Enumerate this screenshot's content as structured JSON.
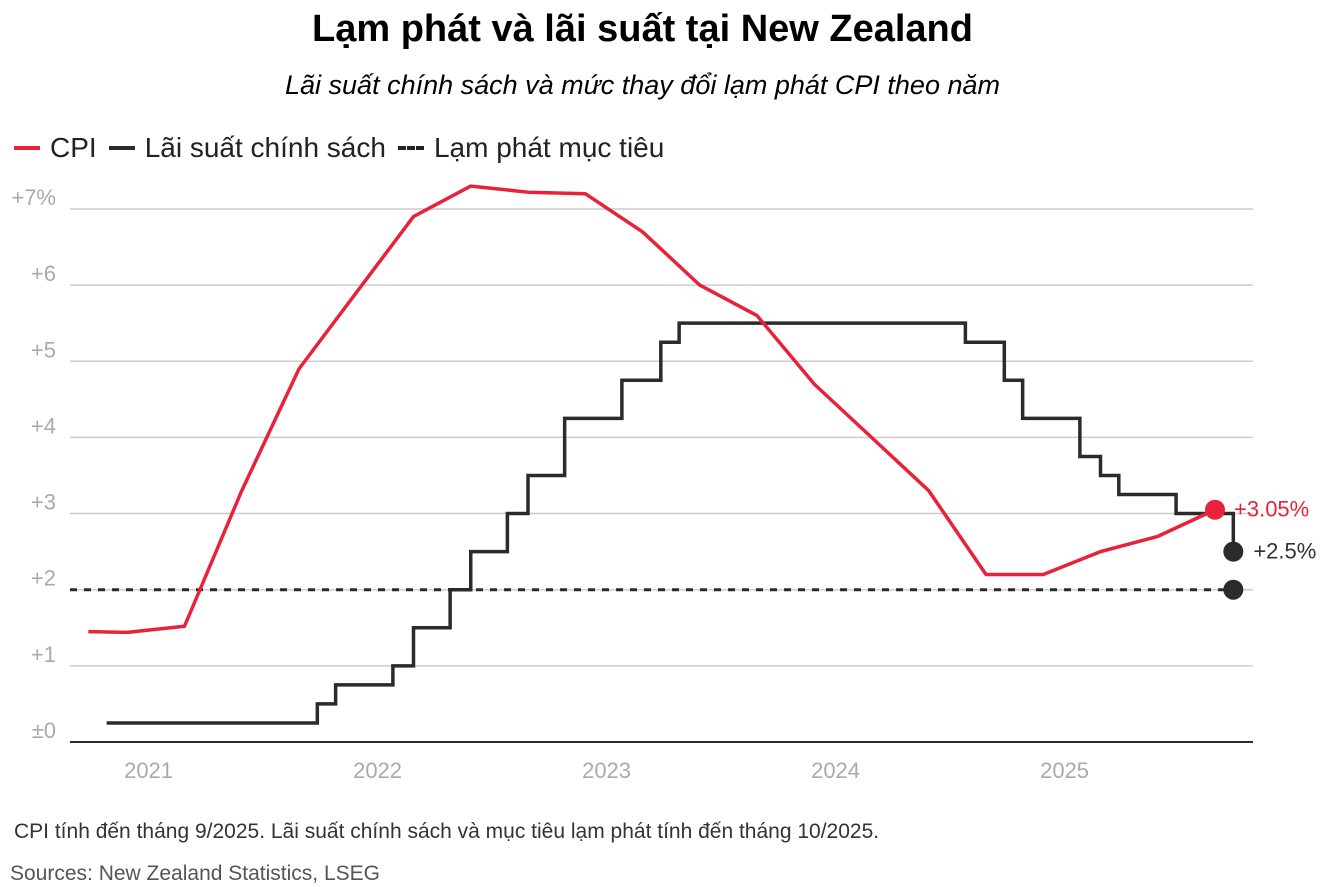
{
  "chart_data": {
    "type": "line",
    "title": "Lạm phát và lãi suất tại New Zealand",
    "subtitle": "Lãi suất chính sách và mức thay đổi lạm phát CPI theo năm",
    "y_tick_labels": [
      "±0",
      "+1",
      "+2",
      "+3",
      "+4",
      "+5",
      "+6",
      "+7%"
    ],
    "y_ticks": [
      0,
      1,
      2,
      3,
      4,
      5,
      6,
      7
    ],
    "ylim": [
      0,
      7.5
    ],
    "x_tick_labels": [
      "2021",
      "2022",
      "2023",
      "2024",
      "2025"
    ],
    "x_ticks": [
      2021.0,
      2022.0,
      2023.0,
      2024.0,
      2025.0
    ],
    "xlim": [
      2020.67,
      2025.92
    ],
    "grid": true,
    "legend_position": "top-left",
    "series": [
      {
        "name": "CPI",
        "color": "#e8223b",
        "style": "line",
        "x": [
          2020.75,
          2020.92,
          2021.17,
          2021.42,
          2021.67,
          2021.92,
          2022.17,
          2022.42,
          2022.67,
          2022.92,
          2023.17,
          2023.42,
          2023.67,
          2023.92,
          2024.17,
          2024.42,
          2024.67,
          2024.92,
          2025.17,
          2025.42,
          2025.67
        ],
        "y": [
          1.45,
          1.44,
          1.52,
          3.3,
          4.9,
          5.9,
          6.9,
          7.3,
          7.22,
          7.2,
          6.7,
          6.0,
          5.6,
          4.7,
          4.0,
          3.3,
          2.2,
          2.2,
          2.5,
          2.7,
          3.05
        ],
        "end_label": "+3.05%"
      },
      {
        "name": "Lãi suất chính sách",
        "color": "#2b2b2b",
        "style": "step",
        "x": [
          2020.83,
          2021.75,
          2021.83,
          2022.08,
          2022.17,
          2022.33,
          2022.42,
          2022.58,
          2022.67,
          2022.83,
          2022.92,
          2023.08,
          2023.25,
          2023.33,
          2024.58,
          2024.75,
          2024.83,
          2025.08,
          2025.17,
          2025.25,
          2025.5,
          2025.75
        ],
        "y": [
          0.25,
          0.5,
          0.75,
          1.0,
          1.5,
          2.0,
          2.5,
          3.0,
          3.5,
          4.25,
          4.25,
          4.75,
          5.25,
          5.5,
          5.25,
          4.75,
          4.25,
          3.75,
          3.5,
          3.25,
          3.0,
          2.5
        ],
        "end_label": "+2.5%"
      },
      {
        "name": "Lạm phát mục tiêu",
        "color": "#2b2b2b",
        "style": "dashed",
        "x": [
          2020.67,
          2025.75
        ],
        "y": [
          2,
          2
        ]
      }
    ]
  },
  "note": "CPI  tính đến tháng 9/2025. Lãi suất chính sách và mục tiêu lạm phát tính đến tháng 10/2025.",
  "source": "Sources: New Zealand Statistics, LSEG"
}
